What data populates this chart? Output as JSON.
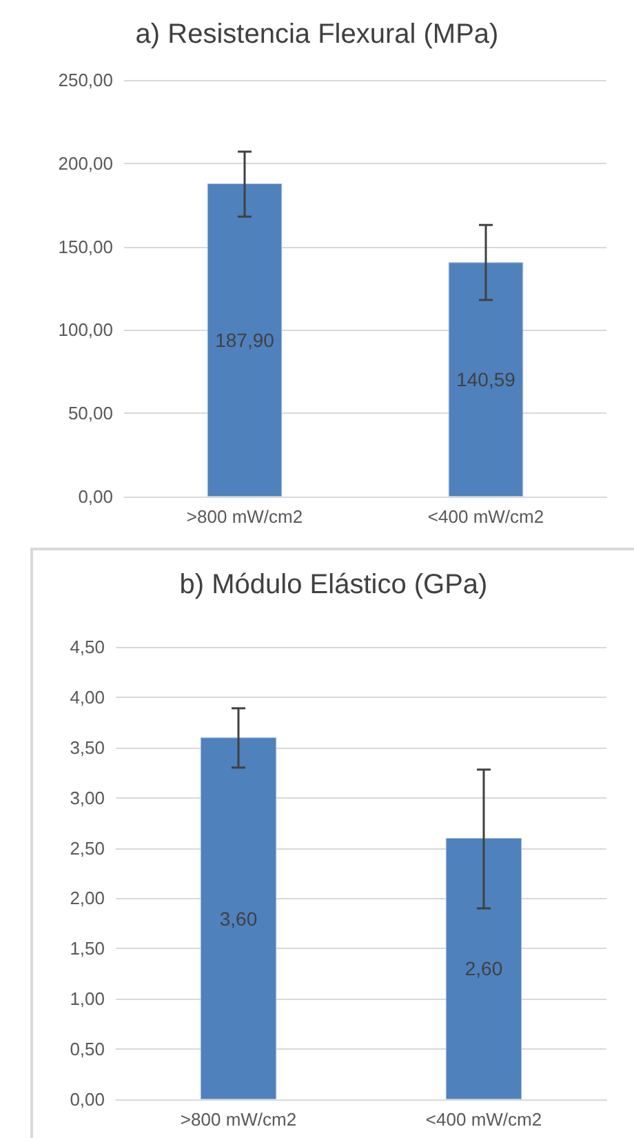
{
  "chart_data": [
    {
      "type": "bar",
      "title": "a) Resistencia Flexural (MPa)",
      "categories": [
        ">800 mW/cm2",
        "<400 mW/cm2"
      ],
      "values": [
        187.9,
        140.59
      ],
      "value_labels": [
        "187,90",
        "140,59"
      ],
      "color": "#4f81bd",
      "errors": [
        [
          168,
          207
        ],
        [
          118,
          163
        ]
      ],
      "ylim": [
        0,
        250
      ],
      "yticks": [
        {
          "value": 0,
          "label": "0,00"
        },
        {
          "value": 50,
          "label": "50,00"
        },
        {
          "value": 100,
          "label": "100,00"
        },
        {
          "value": 150,
          "label": "150,00"
        },
        {
          "value": 200,
          "label": "200,00"
        },
        {
          "value": 250,
          "label": "250,00"
        }
      ],
      "grid": "y"
    },
    {
      "type": "bar",
      "title": "b) Módulo Elástico (GPa)",
      "categories": [
        ">800 mW/cm2",
        "<400 mW/cm2"
      ],
      "values": [
        3.6,
        2.6
      ],
      "value_labels": [
        "3,60",
        "2,60"
      ],
      "color": "#4f81bd",
      "errors": [
        [
          3.3,
          3.89
        ],
        [
          1.9,
          3.28
        ]
      ],
      "ylim": [
        0,
        4.5
      ],
      "yticks": [
        {
          "value": 0,
          "label": "0,00"
        },
        {
          "value": 0.5,
          "label": "0,50"
        },
        {
          "value": 1,
          "label": "1,00"
        },
        {
          "value": 1.5,
          "label": "1,50"
        },
        {
          "value": 2,
          "label": "2,00"
        },
        {
          "value": 2.5,
          "label": "2,50"
        },
        {
          "value": 3,
          "label": "3,00"
        },
        {
          "value": 3.5,
          "label": "3,50"
        },
        {
          "value": 4,
          "label": "4,00"
        },
        {
          "value": 4.5,
          "label": "4,50"
        }
      ],
      "grid": "y"
    }
  ]
}
